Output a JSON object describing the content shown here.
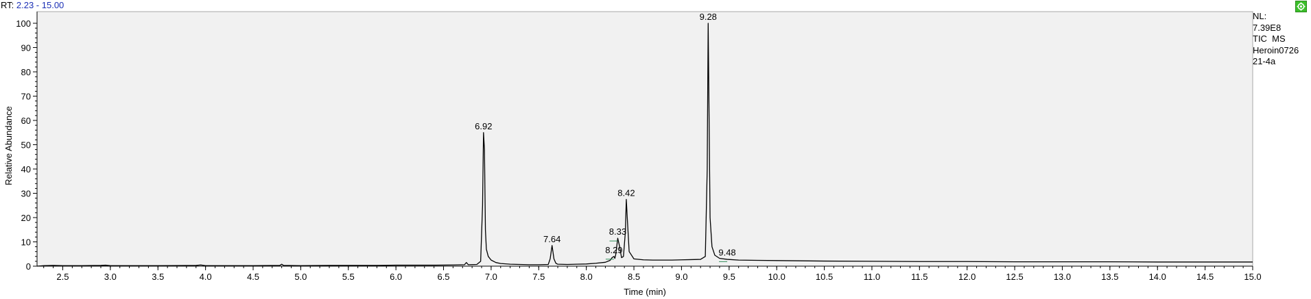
{
  "header": {
    "rt_prefix": "RT:",
    "rt_range": "2.23 - 15.00"
  },
  "info": {
    "lines": [
      "NL:",
      "7.39E8",
      "TIC  MS",
      "Heroin0726",
      "21-4a"
    ]
  },
  "colors": {
    "plot_background": "#f1f1f1",
    "trace": "#000000",
    "rt_range_text": "#1a2fb5",
    "marker": "#2e8b57",
    "icon": "#3bbf2a"
  },
  "icons": {
    "corner": "gear-icon"
  },
  "chart_data": {
    "type": "line",
    "title": "",
    "xlabel": "Time (min)",
    "ylabel": "Relative Abundance",
    "xlim": [
      2.23,
      15.0
    ],
    "ylim": [
      0,
      100
    ],
    "x_ticks": [
      2.5,
      3.0,
      3.5,
      4.0,
      4.5,
      5.0,
      5.5,
      6.0,
      6.5,
      7.0,
      7.5,
      8.0,
      8.5,
      9.0,
      9.5,
      10.0,
      10.5,
      11.0,
      11.5,
      12.0,
      12.5,
      13.0,
      13.5,
      14.0,
      14.5,
      15.0
    ],
    "x_tick_labels": [
      "2.5",
      "3.0",
      "3.5",
      "4.0",
      "4.5",
      "5.0",
      "5.5",
      "6.0",
      "6.5",
      "7.0",
      "7.5",
      "8.0",
      "8.5",
      "9.0",
      "9.5",
      "10.0",
      "10.5",
      "11.0",
      "11.5",
      "12.0",
      "12.5",
      "13.0",
      "13.5",
      "14.0",
      "14.5",
      "15.0"
    ],
    "y_ticks": [
      0,
      10,
      20,
      30,
      40,
      50,
      60,
      70,
      80,
      90,
      100
    ],
    "y_tick_labels": [
      "0",
      "10",
      "20",
      "30",
      "40",
      "50",
      "60",
      "70",
      "80",
      "90",
      "100"
    ],
    "grid": false,
    "peaks": [
      {
        "label": "6.92",
        "x": 6.92,
        "y": 55
      },
      {
        "label": "7.64",
        "x": 7.64,
        "y": 8.5
      },
      {
        "label": "8.29",
        "x": 8.29,
        "y": 4
      },
      {
        "label": "8.33",
        "x": 8.33,
        "y": 11.5
      },
      {
        "label": "8.42",
        "x": 8.42,
        "y": 27.5
      },
      {
        "label": "9.28",
        "x": 9.28,
        "y": 100
      },
      {
        "label": "9.48",
        "x": 9.48,
        "y": 3
      }
    ],
    "series": [
      {
        "x": [
          2.23,
          2.3,
          2.4,
          2.5,
          2.7,
          2.9,
          2.95,
          3.0,
          3.2,
          3.5,
          3.9,
          3.95,
          4.0,
          4.3,
          4.5,
          4.78,
          4.8,
          4.82,
          5.0,
          5.3,
          5.5,
          5.8,
          6.0,
          6.2,
          6.4,
          6.6,
          6.72,
          6.74,
          6.76,
          6.85,
          6.89,
          6.91,
          6.92,
          6.93,
          6.94,
          6.95,
          6.97,
          7.0,
          7.05,
          7.1,
          7.2,
          7.3,
          7.4,
          7.5,
          7.6,
          7.62,
          7.64,
          7.66,
          7.68,
          7.7,
          7.8,
          7.9,
          8.0,
          8.1,
          8.2,
          8.25,
          8.27,
          8.29,
          8.3,
          8.31,
          8.33,
          8.35,
          8.37,
          8.39,
          8.41,
          8.42,
          8.43,
          8.45,
          8.5,
          8.6,
          8.7,
          8.8,
          8.9,
          9.0,
          9.1,
          9.2,
          9.25,
          9.27,
          9.28,
          9.29,
          9.3,
          9.32,
          9.35,
          9.4,
          9.48,
          9.6,
          9.8,
          10.0,
          10.5,
          11.0,
          11.5,
          12.0,
          12.5,
          13.0,
          13.5,
          14.0,
          14.5,
          15.0
        ],
        "y": [
          0,
          0.2,
          0.3,
          0.2,
          0.2,
          0.3,
          0.4,
          0.2,
          0.2,
          0.2,
          0.3,
          0.5,
          0.2,
          0.2,
          0.2,
          0.3,
          0.8,
          0.3,
          0.2,
          0.3,
          0.3,
          0.3,
          0.4,
          0.4,
          0.4,
          0.5,
          0.6,
          1.5,
          0.6,
          0.7,
          2,
          25,
          55,
          48,
          15,
          7,
          4,
          2.5,
          1.5,
          1.1,
          0.8,
          0.7,
          0.6,
          0.6,
          0.7,
          3,
          8.5,
          3,
          1.2,
          0.8,
          0.7,
          0.8,
          0.9,
          1.2,
          1.6,
          2.4,
          3.5,
          4,
          3.2,
          5,
          11.5,
          8,
          3.5,
          4,
          14,
          27.5,
          20,
          6,
          3,
          2.6,
          2.5,
          2.5,
          2.5,
          2.6,
          2.7,
          2.8,
          4,
          40,
          100,
          60,
          20,
          8,
          4.5,
          3.2,
          2.8,
          2.5,
          2.4,
          2.3,
          2.1,
          2.0,
          1.9,
          1.9,
          1.8,
          1.8,
          1.8,
          1.7,
          1.7,
          1.7
        ]
      }
    ]
  }
}
